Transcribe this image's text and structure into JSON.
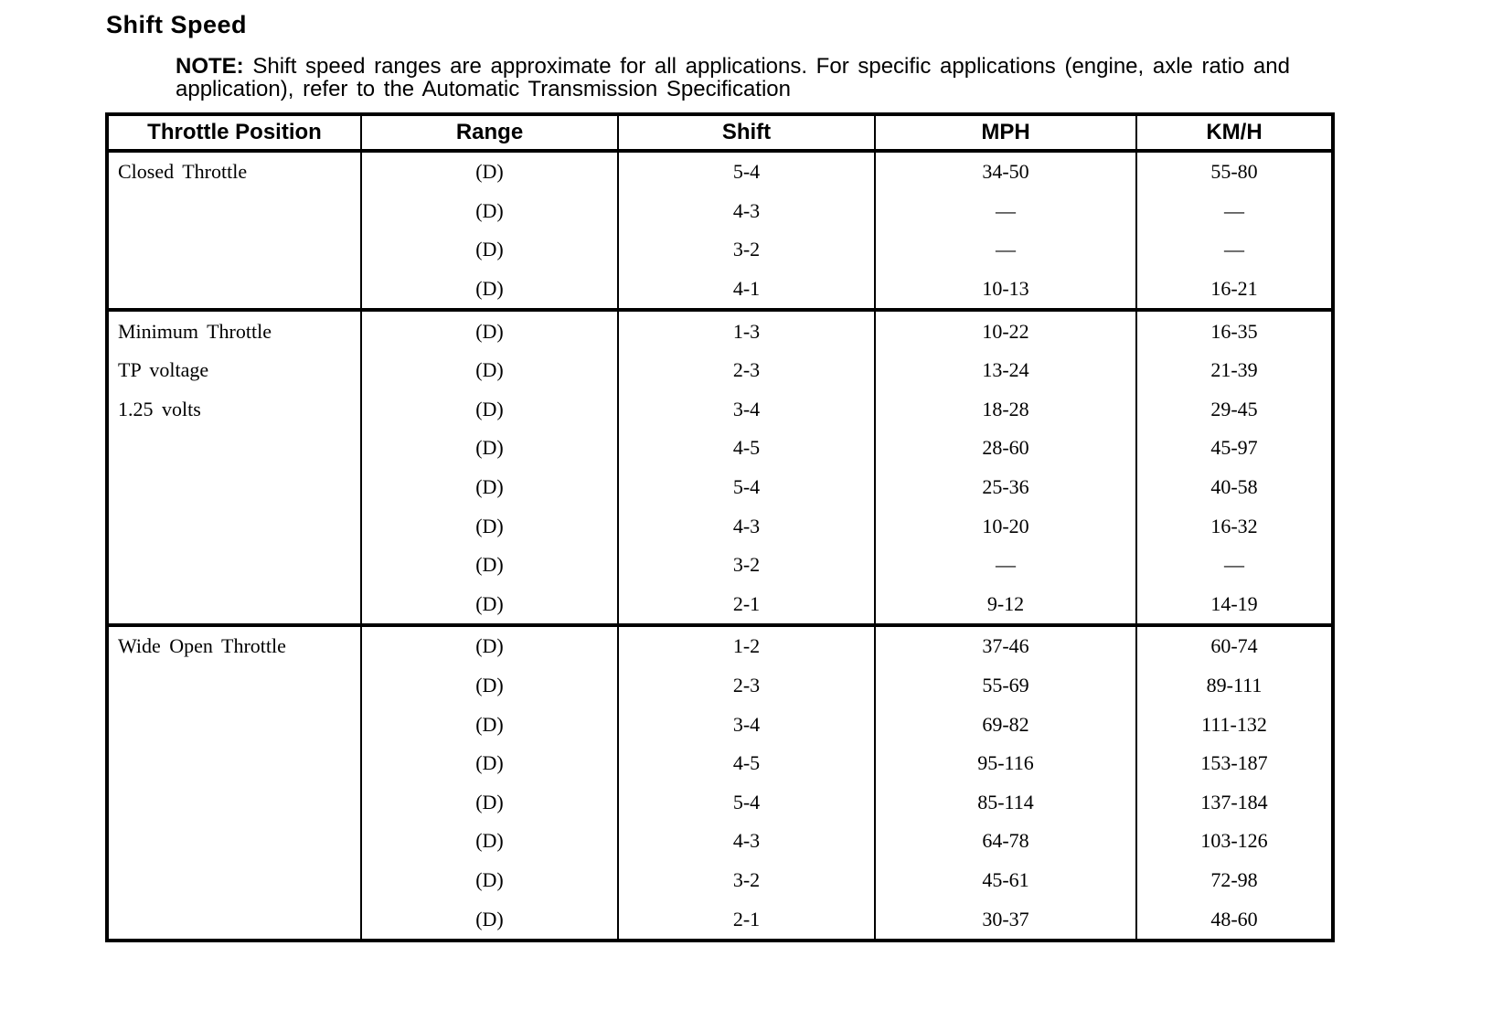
{
  "page": {
    "title": "Shift Speed",
    "note": {
      "label": "NOTE:",
      "text": "Shift speed ranges are approximate for all applications. For specific applications (engine, axle ratio and application), refer to the Automatic Transmission Specification"
    }
  },
  "table": {
    "headers": [
      "Throttle Position",
      "Range",
      "Shift",
      "MPH",
      "KM/H"
    ],
    "sections": [
      {
        "labels": [
          "Closed Throttle"
        ],
        "rows": [
          {
            "range": "(D)",
            "shift": "5-4",
            "mph": "34-50",
            "kmh": "55-80"
          },
          {
            "range": "(D)",
            "shift": "4-3",
            "mph": "—",
            "kmh": "—"
          },
          {
            "range": "(D)",
            "shift": "3-2",
            "mph": "—",
            "kmh": "—"
          },
          {
            "range": "(D)",
            "shift": "4-1",
            "mph": "10-13",
            "kmh": "16-21"
          }
        ]
      },
      {
        "labels": [
          "Minimum Throttle",
          "TP voltage",
          "1.25 volts"
        ],
        "rows": [
          {
            "range": "(D)",
            "shift": "1-3",
            "mph": "10-22",
            "kmh": "16-35"
          },
          {
            "range": "(D)",
            "shift": "2-3",
            "mph": "13-24",
            "kmh": "21-39"
          },
          {
            "range": "(D)",
            "shift": "3-4",
            "mph": "18-28",
            "kmh": "29-45"
          },
          {
            "range": "(D)",
            "shift": "4-5",
            "mph": "28-60",
            "kmh": "45-97"
          },
          {
            "range": "(D)",
            "shift": "5-4",
            "mph": "25-36",
            "kmh": "40-58"
          },
          {
            "range": "(D)",
            "shift": "4-3",
            "mph": "10-20",
            "kmh": "16-32"
          },
          {
            "range": "(D)",
            "shift": "3-2",
            "mph": "—",
            "kmh": "—"
          },
          {
            "range": "(D)",
            "shift": "2-1",
            "mph": "9-12",
            "kmh": "14-19"
          }
        ]
      },
      {
        "labels": [
          "Wide Open Throttle"
        ],
        "rows": [
          {
            "range": "(D)",
            "shift": "1-2",
            "mph": "37-46",
            "kmh": "60-74"
          },
          {
            "range": "(D)",
            "shift": "2-3",
            "mph": "55-69",
            "kmh": "89-111"
          },
          {
            "range": "(D)",
            "shift": "3-4",
            "mph": "69-82",
            "kmh": "111-132"
          },
          {
            "range": "(D)",
            "shift": "4-5",
            "mph": "95-116",
            "kmh": "153-187"
          },
          {
            "range": "(D)",
            "shift": "5-4",
            "mph": "85-114",
            "kmh": "137-184"
          },
          {
            "range": "(D)",
            "shift": "4-3",
            "mph": "64-78",
            "kmh": "103-126"
          },
          {
            "range": "(D)",
            "shift": "3-2",
            "mph": "45-61",
            "kmh": "72-98"
          },
          {
            "range": "(D)",
            "shift": "2-1",
            "mph": "30-37",
            "kmh": "48-60"
          }
        ]
      }
    ]
  }
}
